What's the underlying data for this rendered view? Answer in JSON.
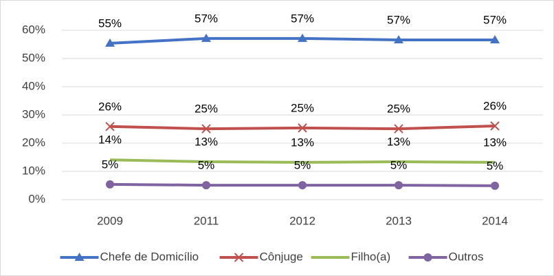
{
  "chart_data": {
    "type": "line",
    "categories": [
      "2009",
      "2011",
      "2012",
      "2013",
      "2014"
    ],
    "series": [
      {
        "name": "Chefe de Domicílio",
        "color": "#4472c4",
        "marker": "triangle",
        "values": [
          55.4,
          57.1,
          57.1,
          56.6,
          56.6
        ],
        "value_labels": [
          "55%",
          "57%",
          "57%",
          "57%",
          "57%"
        ]
      },
      {
        "name": "Cônjuge",
        "color": "#c0504d",
        "marker": "x",
        "values": [
          25.9,
          25.1,
          25.4,
          25.1,
          26.1
        ],
        "value_labels": [
          "26%",
          "25%",
          "25%",
          "25%",
          "26%"
        ]
      },
      {
        "name": "Filho(a)",
        "color": "#9bbb59",
        "marker": "none",
        "values": [
          14.1,
          13.4,
          13.2,
          13.4,
          13.2
        ],
        "value_labels": [
          "14%",
          "13%",
          "13%",
          "13%",
          "13%"
        ]
      },
      {
        "name": "Outros",
        "color": "#8064a2",
        "marker": "circle",
        "values": [
          5.4,
          5.1,
          5.1,
          5.1,
          4.9
        ],
        "value_labels": [
          "5%",
          "5%",
          "5%",
          "5%",
          "5%"
        ]
      }
    ],
    "ylim": [
      0,
      60
    ],
    "yticks": [
      {
        "value": 0,
        "label": "0%"
      },
      {
        "value": 10,
        "label": "10%"
      },
      {
        "value": 20,
        "label": "20%"
      },
      {
        "value": 30,
        "label": "30%"
      },
      {
        "value": 40,
        "label": "40%"
      },
      {
        "value": 50,
        "label": "50%"
      },
      {
        "value": 60,
        "label": "60%"
      }
    ],
    "grid": true,
    "legend": "bottom"
  }
}
